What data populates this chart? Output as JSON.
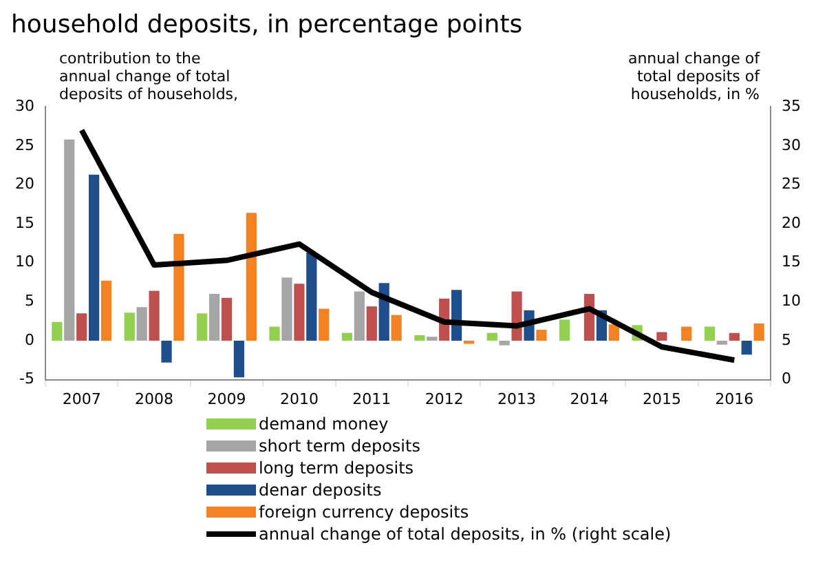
{
  "chart_data": {
    "type": "bar",
    "title": "household deposits, in percentage points",
    "categories": [
      "2007",
      "2008",
      "2009",
      "2010",
      "2011",
      "2012",
      "2013",
      "2014",
      "2015",
      "2016"
    ],
    "series": [
      {
        "name": "demand money",
        "color": "#92d050",
        "values": [
          2.4,
          3.6,
          3.5,
          1.8,
          1.0,
          0.7,
          1.0,
          2.7,
          2.0,
          1.8
        ]
      },
      {
        "name": "short term deposits",
        "color": "#a6a6a6",
        "values": [
          25.8,
          4.3,
          6.0,
          8.1,
          6.3,
          0.5,
          -0.6,
          0,
          null,
          -0.5
        ]
      },
      {
        "name": "long term deposits",
        "color": "#c0504d",
        "values": [
          3.5,
          6.4,
          5.5,
          7.3,
          4.4,
          5.4,
          6.3,
          6.0,
          1.1,
          1.0
        ]
      },
      {
        "name": "denar deposits",
        "color": "#1f4e8c",
        "values": [
          21.3,
          -2.8,
          -4.7,
          11.3,
          7.4,
          6.5,
          3.9,
          3.9,
          0,
          -1.8
        ]
      },
      {
        "name": "foreign currency deposits",
        "color": "#f58220",
        "values": [
          7.7,
          13.7,
          16.4,
          4.1,
          3.3,
          -0.4,
          1.4,
          2.1,
          1.8,
          2.2
        ]
      },
      {
        "name": "annual change of total deposits, in % (right scale)",
        "type": "line",
        "axis": "y2",
        "color": "#000000",
        "values": [
          32,
          14.7,
          15.3,
          17.4,
          11.2,
          7.4,
          6.9,
          9.1,
          4.2,
          2.5
        ]
      }
    ],
    "ylim": [
      -5,
      30
    ],
    "yticks": [
      -5,
      0,
      5,
      10,
      15,
      20,
      25,
      30
    ],
    "y2lim": [
      0,
      35
    ],
    "y2ticks": [
      0,
      5,
      10,
      15,
      20,
      25,
      30,
      35
    ],
    "annotations": [
      "contribution to the\nannual change of total\ndeposits of households,",
      "annual change of\ntotal deposits of\nhouseholds, in %"
    ],
    "legend": "bottom",
    "grid": false,
    "marker": "none"
  }
}
